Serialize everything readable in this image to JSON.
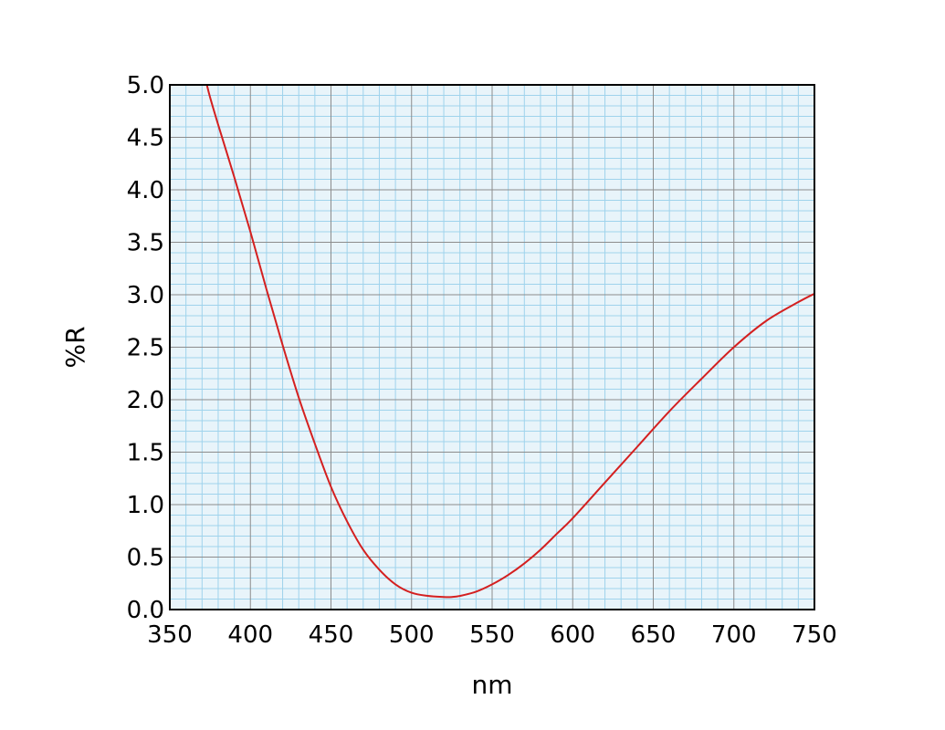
{
  "chart_data": {
    "type": "line",
    "title": "",
    "xlabel": "nm",
    "ylabel": "%R",
    "xlim": [
      350,
      750
    ],
    "ylim": [
      0,
      5
    ],
    "x_ticks": [
      "350",
      "400",
      "450",
      "500",
      "550",
      "600",
      "650",
      "700",
      "750"
    ],
    "y_ticks": [
      "0.0",
      "0.5",
      "1.0",
      "1.5",
      "2.0",
      "2.5",
      "3.0",
      "3.5",
      "4.0",
      "4.5",
      "5.0"
    ],
    "grid": {
      "major": true,
      "minor": true,
      "x_minor_step": 10,
      "y_minor_step": 0.1
    },
    "legend": "none",
    "series": [
      {
        "color": "#d42020",
        "x": [
          373,
          375,
          380,
          390,
          400,
          410,
          420,
          430,
          440,
          450,
          460,
          470,
          480,
          490,
          500,
          510,
          520,
          525,
          530,
          540,
          550,
          560,
          570,
          580,
          590,
          600,
          620,
          640,
          660,
          680,
          700,
          720,
          740,
          750
        ],
        "y": [
          5.0,
          4.88,
          4.62,
          4.12,
          3.6,
          3.05,
          2.52,
          2.02,
          1.58,
          1.17,
          0.84,
          0.57,
          0.38,
          0.24,
          0.16,
          0.13,
          0.12,
          0.12,
          0.13,
          0.17,
          0.24,
          0.33,
          0.44,
          0.57,
          0.72,
          0.87,
          1.21,
          1.55,
          1.89,
          2.2,
          2.5,
          2.75,
          2.93,
          3.01
        ]
      }
    ],
    "colors": {
      "background": "#e8f4fa",
      "minor_grid": "#9fd3ec",
      "major_grid": "#8c8c8c",
      "frame": "#000000",
      "line": "#d42020"
    }
  }
}
